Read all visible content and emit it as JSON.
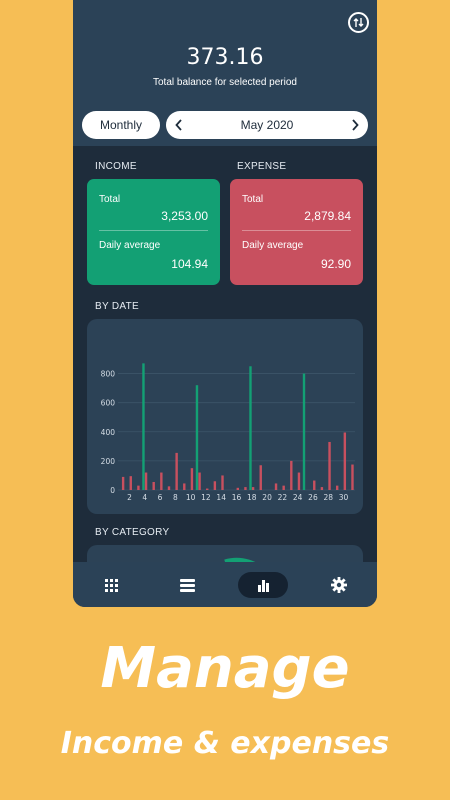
{
  "header": {
    "balance": "373.16",
    "balance_caption": "Total balance for selected period",
    "period_label": "Monthly",
    "month_label": "May 2020",
    "prev_icon": "chevron-left-icon",
    "next_icon": "chevron-right-icon",
    "swap_icon": "swap-icon"
  },
  "summary": {
    "income_title": "INCOME",
    "expense_title": "EXPENSE",
    "income": {
      "total_label": "Total",
      "total_value": "3,253.00",
      "avg_label": "Daily average",
      "avg_value": "104.94",
      "color": "#13a074"
    },
    "expense": {
      "total_label": "Total",
      "total_value": "2,879.84",
      "avg_label": "Daily average",
      "avg_value": "92.90",
      "color": "#c8505f"
    }
  },
  "by_date_title": "BY DATE",
  "by_category_title": "BY CATEGORY",
  "chart_data": {
    "type": "bar",
    "x": [
      1,
      2,
      3,
      4,
      5,
      6,
      7,
      8,
      9,
      10,
      11,
      12,
      13,
      14,
      15,
      16,
      17,
      18,
      19,
      20,
      21,
      22,
      23,
      24,
      25,
      26,
      27,
      28,
      29,
      30,
      31
    ],
    "x_tick_labels": [
      "2",
      "4",
      "6",
      "8",
      "10",
      "12",
      "14",
      "16",
      "18",
      "20",
      "22",
      "24",
      "26",
      "28",
      "30"
    ],
    "y_tick_labels": [
      "0",
      "200",
      "400",
      "600",
      "800"
    ],
    "ylim": [
      0,
      900
    ],
    "grid": true,
    "series": [
      {
        "color": "#13a074",
        "values": [
          0,
          0,
          0,
          870,
          0,
          0,
          0,
          0,
          0,
          0,
          720,
          0,
          0,
          0,
          0,
          0,
          0,
          850,
          0,
          0,
          0,
          0,
          0,
          0,
          800,
          0,
          0,
          0,
          0,
          0,
          0
        ]
      },
      {
        "color": "#c8505f",
        "values": [
          90,
          95,
          30,
          120,
          55,
          120,
          25,
          255,
          45,
          150,
          120,
          10,
          60,
          100,
          0,
          15,
          20,
          20,
          170,
          0,
          45,
          30,
          200,
          120,
          0,
          65,
          20,
          330,
          30,
          395,
          175
        ]
      }
    ]
  },
  "nav": {
    "items": [
      {
        "icon": "grid-icon"
      },
      {
        "icon": "list-icon"
      },
      {
        "icon": "bar-chart-icon"
      },
      {
        "icon": "gear-icon"
      }
    ]
  },
  "promo": {
    "headline": "Manage",
    "subline": "Income & expenses"
  }
}
